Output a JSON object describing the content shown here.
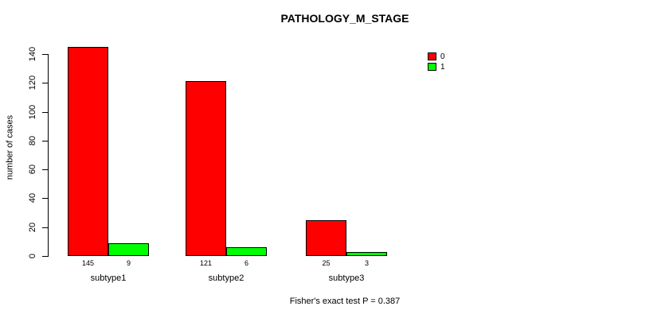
{
  "title": "PATHOLOGY_M_STAGE",
  "footer": {
    "annotation": "Fisher's exact test P = 0.387"
  },
  "chart_data": {
    "type": "bar",
    "title": "PATHOLOGY_M_STAGE",
    "categories": [
      "subtype1",
      "subtype2",
      "subtype3"
    ],
    "series": [
      {
        "name": "0",
        "color": "#ff0000",
        "values": [
          145,
          121,
          25
        ]
      },
      {
        "name": "1",
        "color": "#00ff00",
        "values": [
          9,
          6,
          3
        ]
      }
    ],
    "xlabel": "",
    "ylabel": "number of cases",
    "ylim": [
      0,
      140
    ],
    "yticks": [
      0,
      20,
      40,
      60,
      80,
      100,
      120,
      140
    ],
    "bar_value_labels": [
      [
        145,
        9
      ],
      [
        121,
        6
      ],
      [
        25,
        3
      ]
    ],
    "grid": false,
    "legend_position": "top-right",
    "legend_border": false,
    "annotation": "Fisher's exact test P = 0.387",
    "bar_border_color": "#000000"
  }
}
